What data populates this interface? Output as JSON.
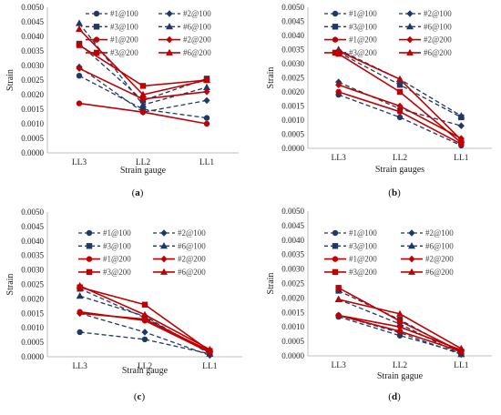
{
  "figure": {
    "panels": [
      {
        "caption": "(a)"
      },
      {
        "caption": "(b)"
      },
      {
        "caption": "(c)"
      },
      {
        "caption": "(d)"
      }
    ]
  },
  "chart_data": [
    {
      "type": "line",
      "panel_caption": "(a)",
      "xlabel": "Strain gauge",
      "ylabel": "Strain",
      "categories": [
        "LL3",
        "LL2",
        "LL1"
      ],
      "ylim": [
        0,
        0.005
      ],
      "yticks": [
        "0.0000",
        "0.0005",
        "0.0010",
        "0.0015",
        "0.0020",
        "0.0025",
        "0.0030",
        "0.0035",
        "0.0040",
        "0.0045",
        "0.0050"
      ],
      "grid": false,
      "legend": "top-right",
      "series": [
        {
          "name": "#1@100",
          "values": [
            0.00265,
            0.0015,
            0.0012
          ],
          "marker": "circle",
          "style": "dashed",
          "color": "#1f3864"
        },
        {
          "name": "#2@100",
          "values": [
            0.00295,
            0.0014,
            0.0018
          ],
          "marker": "diamond",
          "style": "dashed",
          "color": "#1f3864"
        },
        {
          "name": "#3@100",
          "values": [
            0.00375,
            0.0018,
            0.00255
          ],
          "marker": "square",
          "style": "dashed",
          "color": "#1f3864"
        },
        {
          "name": "#6@100",
          "values": [
            0.00445,
            0.00165,
            0.00225
          ],
          "marker": "triangle",
          "style": "dashed",
          "color": "#1f3864"
        },
        {
          "name": "#1@200",
          "values": [
            0.0017,
            0.0014,
            0.001
          ],
          "marker": "circle",
          "style": "solid",
          "color": "#c00000"
        },
        {
          "name": "#2@200",
          "values": [
            0.0029,
            0.00185,
            0.0021
          ],
          "marker": "diamond",
          "style": "solid",
          "color": "#c00000"
        },
        {
          "name": "#3@200",
          "values": [
            0.0037,
            0.0023,
            0.0025
          ],
          "marker": "square",
          "style": "solid",
          "color": "#c00000"
        },
        {
          "name": "#6@200",
          "values": [
            0.00425,
            0.002,
            0.0025
          ],
          "marker": "triangle",
          "style": "solid",
          "color": "#c00000"
        }
      ]
    },
    {
      "type": "line",
      "panel_caption": "(b)",
      "xlabel": "Strain gauges",
      "ylabel": "Strain",
      "categories": [
        "LL3",
        "LL2",
        "LL1"
      ],
      "ylim": [
        0,
        0.005
      ],
      "yticks": [
        "0.0000",
        "0.0005",
        "0.0010",
        "0.0015",
        "0.0020",
        "0.0025",
        "0.0030",
        "0.0035",
        "0.0040",
        "0.0045",
        "0.0050"
      ],
      "grid": false,
      "legend": "top-right",
      "series": [
        {
          "name": "#1@100",
          "values": [
            0.0019,
            0.0011,
            0.0001
          ],
          "marker": "circle",
          "style": "dashed",
          "color": "#1f3864"
        },
        {
          "name": "#2@100",
          "values": [
            0.00235,
            0.0014,
            0.0008
          ],
          "marker": "diamond",
          "style": "dashed",
          "color": "#1f3864"
        },
        {
          "name": "#3@100",
          "values": [
            0.0034,
            0.00225,
            0.0011
          ],
          "marker": "square",
          "style": "dashed",
          "color": "#1f3864"
        },
        {
          "name": "#6@100",
          "values": [
            0.0035,
            0.00245,
            0.00115
          ],
          "marker": "triangle",
          "style": "dashed",
          "color": "#1f3864"
        },
        {
          "name": "#1@200",
          "values": [
            0.002,
            0.0013,
            0.00015
          ],
          "marker": "circle",
          "style": "solid",
          "color": "#c00000"
        },
        {
          "name": "#2@200",
          "values": [
            0.00225,
            0.0015,
            0.00035
          ],
          "marker": "diamond",
          "style": "solid",
          "color": "#c00000"
        },
        {
          "name": "#3@200",
          "values": [
            0.00335,
            0.002,
            0.0002
          ],
          "marker": "square",
          "style": "solid",
          "color": "#c00000"
        },
        {
          "name": "#6@200",
          "values": [
            0.00345,
            0.00245,
            0.0003
          ],
          "marker": "triangle",
          "style": "solid",
          "color": "#c00000"
        }
      ]
    },
    {
      "type": "line",
      "panel_caption": "(c)",
      "xlabel": "Strain gauge",
      "ylabel": "Strain",
      "categories": [
        "LL3",
        "LL2",
        "LL1"
      ],
      "ylim": [
        0,
        0.005
      ],
      "yticks": [
        "0.0000",
        "0.0005",
        "0.0010",
        "0.0015",
        "0.0020",
        "0.0025",
        "0.0030",
        "0.0035",
        "0.0040",
        "0.0045",
        "0.0050"
      ],
      "grid": false,
      "legend": "top-right",
      "series": [
        {
          "name": "#1@100",
          "values": [
            0.00085,
            0.0006,
            0.0001
          ],
          "marker": "circle",
          "style": "dashed",
          "color": "#1f3864"
        },
        {
          "name": "#2@100",
          "values": [
            0.0015,
            0.00085,
            5e-05
          ],
          "marker": "diamond",
          "style": "dashed",
          "color": "#1f3864"
        },
        {
          "name": "#3@100",
          "values": [
            0.00235,
            0.00135,
            0.00015
          ],
          "marker": "square",
          "style": "dashed",
          "color": "#1f3864"
        },
        {
          "name": "#6@100",
          "values": [
            0.0021,
            0.0014,
            0.0001
          ],
          "marker": "triangle",
          "style": "dashed",
          "color": "#1f3864"
        },
        {
          "name": "#1@200",
          "values": [
            0.00155,
            0.00125,
            0.00015
          ],
          "marker": "circle",
          "style": "solid",
          "color": "#c00000"
        },
        {
          "name": "#2@200",
          "values": [
            0.0015,
            0.0013,
            0.0002
          ],
          "marker": "diamond",
          "style": "solid",
          "color": "#c00000"
        },
        {
          "name": "#3@200",
          "values": [
            0.0024,
            0.0018,
            0.0002
          ],
          "marker": "square",
          "style": "solid",
          "color": "#c00000"
        },
        {
          "name": "#6@200",
          "values": [
            0.00245,
            0.00145,
            0.00025
          ],
          "marker": "triangle",
          "style": "solid",
          "color": "#c00000"
        }
      ]
    },
    {
      "type": "line",
      "panel_caption": "(d)",
      "xlabel": "Strain gague",
      "ylabel": "Strain",
      "categories": [
        "LL3",
        "LL2",
        "LL1"
      ],
      "ylim": [
        0,
        0.005
      ],
      "yticks": [
        "0.0000",
        "0.0005",
        "0.0010",
        "0.0015",
        "0.0020",
        "0.0025",
        "0.0030",
        "0.0035",
        "0.0040",
        "0.0045",
        "0.0050"
      ],
      "grid": false,
      "legend": "top-right",
      "series": [
        {
          "name": "#1@100",
          "values": [
            0.00135,
            0.0007,
            0.0001
          ],
          "marker": "circle",
          "style": "dashed",
          "color": "#1f3864"
        },
        {
          "name": "#2@100",
          "values": [
            0.0014,
            0.0008,
            5e-05
          ],
          "marker": "diamond",
          "style": "dashed",
          "color": "#1f3864"
        },
        {
          "name": "#3@100",
          "values": [
            0.00225,
            0.00125,
            0.0001
          ],
          "marker": "square",
          "style": "dashed",
          "color": "#1f3864"
        },
        {
          "name": "#6@100",
          "values": [
            0.00195,
            0.0011,
            5e-05
          ],
          "marker": "triangle",
          "style": "dashed",
          "color": "#1f3864"
        },
        {
          "name": "#1@200",
          "values": [
            0.0014,
            0.00085,
            0.00015
          ],
          "marker": "circle",
          "style": "solid",
          "color": "#c00000"
        },
        {
          "name": "#2@200",
          "values": [
            0.0014,
            0.001,
            0.0002
          ],
          "marker": "diamond",
          "style": "solid",
          "color": "#c00000"
        },
        {
          "name": "#3@200",
          "values": [
            0.00235,
            0.0012,
            0.00015
          ],
          "marker": "square",
          "style": "solid",
          "color": "#c00000"
        },
        {
          "name": "#6@200",
          "values": [
            0.00195,
            0.00145,
            0.00025
          ],
          "marker": "triangle",
          "style": "solid",
          "color": "#c00000"
        }
      ]
    }
  ]
}
